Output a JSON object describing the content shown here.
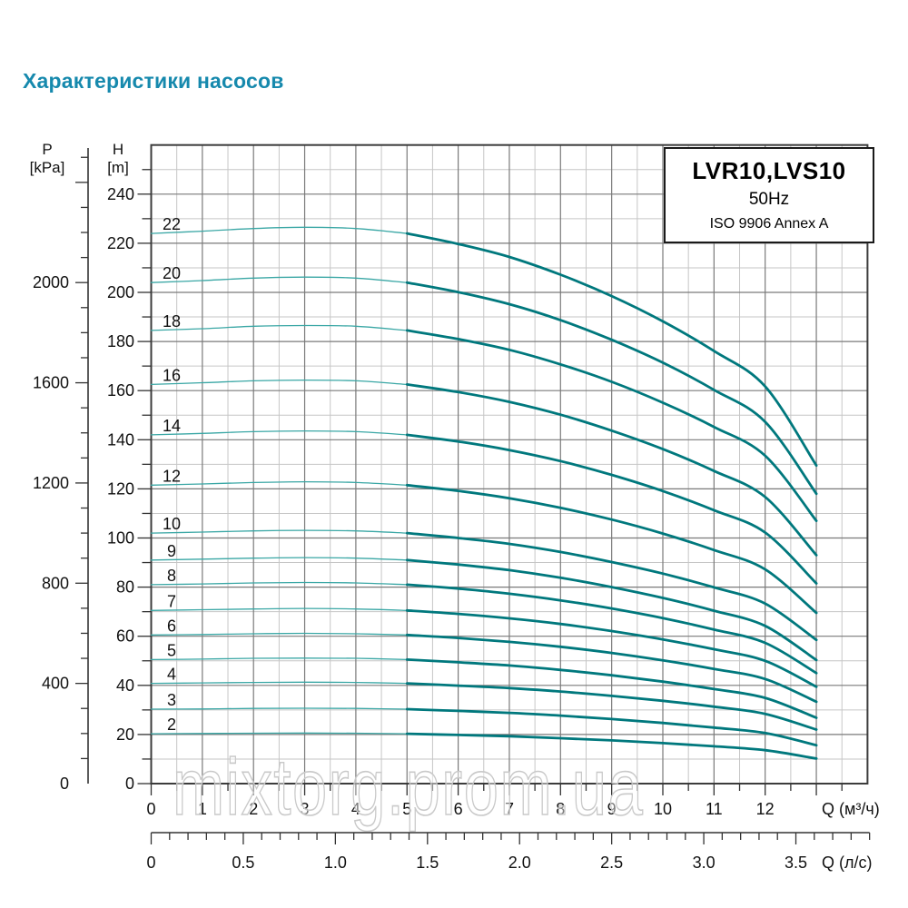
{
  "title": "Характеристики насосов",
  "watermark": "mixtorg.prom.ua",
  "info_box": {
    "model": "LVR10,LVS10",
    "frequency": "50Hz",
    "standard": "ISO 9906 Annex A"
  },
  "axes": {
    "pressure": {
      "name": "P",
      "unit": "[kPa]",
      "ticks": [
        2000,
        1600,
        1200,
        800,
        400,
        0
      ]
    },
    "head": {
      "name": "H",
      "unit": "[m]",
      "ticks": [
        240,
        220,
        200,
        180,
        160,
        140,
        120,
        100,
        80,
        60,
        40,
        20,
        0
      ]
    },
    "flow_m3h": {
      "label": "Q (м³/ч)",
      "ticks": [
        0,
        1,
        2,
        3,
        4,
        5,
        6,
        7,
        8,
        9,
        10,
        11,
        12
      ]
    },
    "flow_ls": {
      "label": "Q (л/с)",
      "ticks": [
        "0",
        "0.5",
        "1.0",
        "1.5",
        "2.0",
        "2.5",
        "3.0",
        "3.5"
      ]
    }
  },
  "chart_data": {
    "type": "line",
    "title": "LVR10,LVS10 50Hz pump head curves",
    "xlabel": "Q (м³/ч)",
    "ylabel": "H [m]",
    "x_range_m3h": [
      0,
      14
    ],
    "curves_end_at_m3h": 13,
    "bold_segment_start_m3h": 5,
    "y_range_m": [
      0,
      260
    ],
    "grid": "on",
    "x": [
      0,
      1,
      2,
      3,
      4,
      5,
      6,
      7,
      8,
      9,
      10,
      11,
      12,
      13
    ],
    "series": [
      {
        "name": "22",
        "values": [
          224,
          224.9,
          226,
          226.5,
          226,
          224,
          219.7,
          214.4,
          207.2,
          198.5,
          188.2,
          176.1,
          161.7,
          129.5
        ]
      },
      {
        "name": "20",
        "values": [
          204,
          204.8,
          205.8,
          206.2,
          205.8,
          204,
          200.1,
          195.2,
          188.7,
          180.7,
          171.4,
          160.3,
          147.3,
          118
        ]
      },
      {
        "name": "18",
        "values": [
          184.5,
          185.2,
          186.2,
          186.5,
          186.2,
          184.5,
          181,
          176.6,
          170.7,
          163.6,
          155.1,
          145.2,
          133.5,
          107
        ]
      },
      {
        "name": "16",
        "values": [
          162.5,
          163.2,
          164,
          164.3,
          164,
          162.5,
          159.4,
          155.4,
          150.2,
          143.7,
          136.2,
          127.3,
          116.7,
          93
        ]
      },
      {
        "name": "14",
        "values": [
          142,
          142.6,
          143.3,
          143.6,
          143.3,
          142,
          139.3,
          135.8,
          131.3,
          125.7,
          119.1,
          111.3,
          102.2,
          81.5
        ]
      },
      {
        "name": "12",
        "values": [
          121.5,
          122,
          122.6,
          122.9,
          122.6,
          121.5,
          119.2,
          116.2,
          112.3,
          107.5,
          101.8,
          95.1,
          87.2,
          69.5
        ]
      },
      {
        "name": "10",
        "values": [
          102,
          102.4,
          102.9,
          103.1,
          102.9,
          102,
          100,
          97.6,
          94.3,
          90.2,
          85.5,
          79.9,
          73.3,
          58.5
        ]
      },
      {
        "name": "9",
        "values": [
          91,
          91.4,
          91.8,
          92,
          91.8,
          91,
          89.2,
          86.9,
          83.8,
          80,
          75.6,
          70.4,
          64.2,
          50.3
        ]
      },
      {
        "name": "8",
        "values": [
          81,
          81.3,
          81.7,
          81.9,
          81.7,
          81,
          79.4,
          77.3,
          74.6,
          71.3,
          67.4,
          62.7,
          57.3,
          45
        ]
      },
      {
        "name": "7",
        "values": [
          70.5,
          70.8,
          71.1,
          71.3,
          71.1,
          70.5,
          69.1,
          67.3,
          65,
          62.1,
          58.7,
          54.7,
          50,
          39.4
        ]
      },
      {
        "name": "6",
        "values": [
          60.5,
          60.7,
          61,
          61.2,
          61,
          60.5,
          59.3,
          57.7,
          55.7,
          53.2,
          50.2,
          46.7,
          42.6,
          33.3
        ]
      },
      {
        "name": "5",
        "values": [
          50.5,
          50.7,
          51,
          51.1,
          51,
          50.5,
          49.4,
          48.1,
          46.3,
          44.1,
          41.5,
          38.5,
          34.9,
          26.8
        ]
      },
      {
        "name": "4",
        "values": [
          40.8,
          41,
          41.2,
          41.3,
          41.2,
          40.8,
          39.9,
          38.9,
          37.5,
          35.7,
          33.7,
          31.3,
          28.4,
          22
        ]
      },
      {
        "name": "3",
        "values": [
          30.3,
          30.4,
          30.6,
          30.7,
          30.6,
          30.3,
          29.6,
          28.8,
          27.7,
          26.3,
          24.7,
          22.8,
          20.6,
          15.6
        ]
      },
      {
        "name": "2",
        "values": [
          20.3,
          20.4,
          20.5,
          20.6,
          20.5,
          20.3,
          19.8,
          19.3,
          18.5,
          17.6,
          16.5,
          15.2,
          13.6,
          10.2
        ]
      }
    ]
  },
  "colors": {
    "title": "#1689ad",
    "curve_thick": "#00787d",
    "curve_thin": "#3aa7a5",
    "grid_minor": "#c6c6c6",
    "grid_major": "#7a7a7a",
    "frame": "#3c3c3c",
    "tick": "#333333",
    "text": "#111111",
    "watermark_outline": "#c9c9c9"
  }
}
